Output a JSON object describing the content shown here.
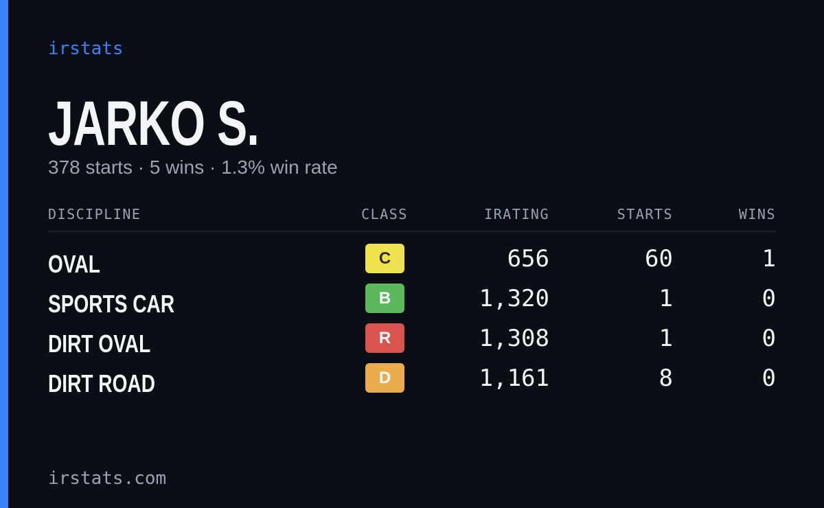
{
  "brand": "irstats",
  "driver": {
    "name": "JARKO S.",
    "summary": "378 starts · 5 wins · 1.3% win rate"
  },
  "table": {
    "headers": [
      "DISCIPLINE",
      "CLASS",
      "IRATING",
      "STARTS",
      "WINS"
    ],
    "rows": [
      [
        "OVAL",
        "C",
        "656",
        "60",
        "1"
      ],
      [
        "SPORTS CAR",
        "B",
        "1,320",
        "1",
        "0"
      ],
      [
        "DIRT OVAL",
        "R",
        "1,308",
        "1",
        "0"
      ],
      [
        "DIRT ROAD",
        "D",
        "1,161",
        "8",
        "0"
      ]
    ],
    "class_colors": [
      "#f0e24e",
      "#5cb85c",
      "#d9534f",
      "#eaac4c"
    ]
  },
  "footer": "irstats.com"
}
